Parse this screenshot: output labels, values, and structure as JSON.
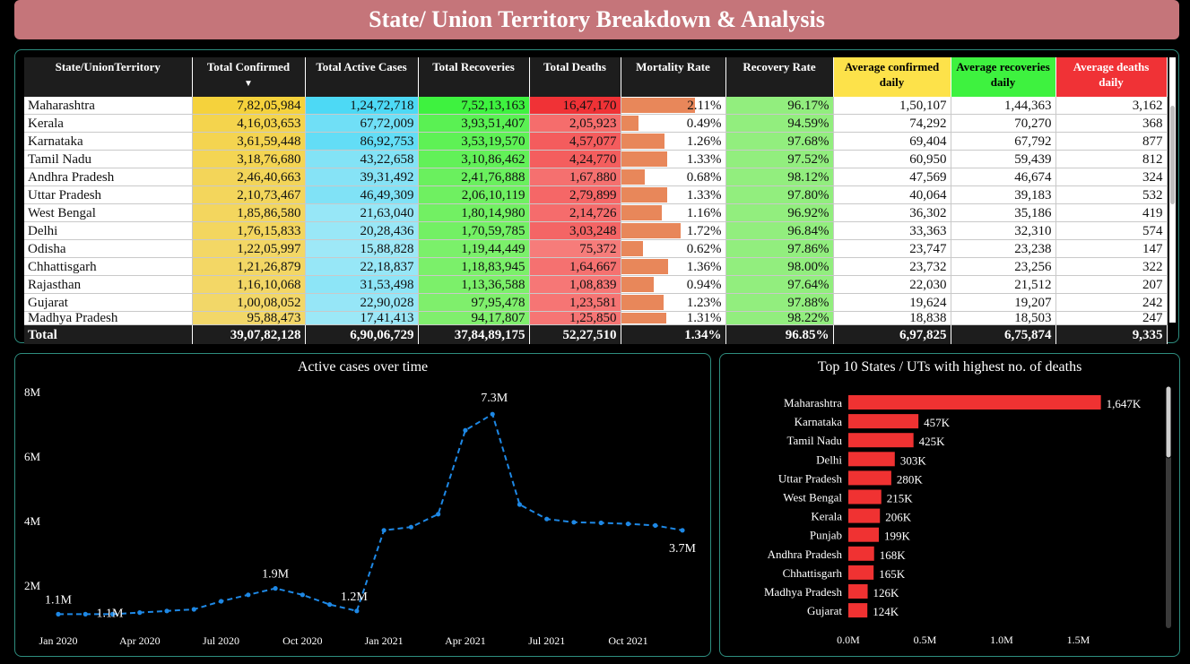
{
  "title": "State/ Union Territory Breakdown & Analysis",
  "table": {
    "headers": [
      "State/UnionTerritory",
      "Total Confirmed",
      "Total Active Cases",
      "Total Recoveries",
      "Total Deaths",
      "Mortality Rate",
      "Recovery Rate",
      "Average confirmed daily",
      "Average recoveries daily",
      "Average deaths daily"
    ],
    "rows": [
      {
        "state": "Maharashtra",
        "confirmed": "7,82,05,984",
        "active": "1,24,72,718",
        "recoveries": "7,52,13,163",
        "deaths": "16,47,170",
        "mortality": "2.11%",
        "mortality_value": 2.11,
        "recovery": "96.17%",
        "avg_confirmed": "1,50,107",
        "avg_recoveries": "1,44,363",
        "avg_deaths": "3,162"
      },
      {
        "state": "Kerala",
        "confirmed": "4,16,03,653",
        "active": "67,72,009",
        "recoveries": "3,93,51,407",
        "deaths": "2,05,923",
        "mortality": "0.49%",
        "mortality_value": 0.49,
        "recovery": "94.59%",
        "avg_confirmed": "74,292",
        "avg_recoveries": "70,270",
        "avg_deaths": "368"
      },
      {
        "state": "Karnataka",
        "confirmed": "3,61,59,448",
        "active": "86,92,753",
        "recoveries": "3,53,19,570",
        "deaths": "4,57,077",
        "mortality": "1.26%",
        "mortality_value": 1.26,
        "recovery": "97.68%",
        "avg_confirmed": "69,404",
        "avg_recoveries": "67,792",
        "avg_deaths": "877"
      },
      {
        "state": "Tamil Nadu",
        "confirmed": "3,18,76,680",
        "active": "43,22,658",
        "recoveries": "3,10,86,462",
        "deaths": "4,24,770",
        "mortality": "1.33%",
        "mortality_value": 1.33,
        "recovery": "97.52%",
        "avg_confirmed": "60,950",
        "avg_recoveries": "59,439",
        "avg_deaths": "812"
      },
      {
        "state": "Andhra Pradesh",
        "confirmed": "2,46,40,663",
        "active": "39,31,492",
        "recoveries": "2,41,76,888",
        "deaths": "1,67,880",
        "mortality": "0.68%",
        "mortality_value": 0.68,
        "recovery": "98.12%",
        "avg_confirmed": "47,569",
        "avg_recoveries": "46,674",
        "avg_deaths": "324"
      },
      {
        "state": "Uttar Pradesh",
        "confirmed": "2,10,73,467",
        "active": "46,49,309",
        "recoveries": "2,06,10,119",
        "deaths": "2,79,899",
        "mortality": "1.33%",
        "mortality_value": 1.33,
        "recovery": "97.80%",
        "avg_confirmed": "40,064",
        "avg_recoveries": "39,183",
        "avg_deaths": "532"
      },
      {
        "state": "West Bengal",
        "confirmed": "1,85,86,580",
        "active": "21,63,040",
        "recoveries": "1,80,14,980",
        "deaths": "2,14,726",
        "mortality": "1.16%",
        "mortality_value": 1.16,
        "recovery": "96.92%",
        "avg_confirmed": "36,302",
        "avg_recoveries": "35,186",
        "avg_deaths": "419"
      },
      {
        "state": "Delhi",
        "confirmed": "1,76,15,833",
        "active": "20,28,436",
        "recoveries": "1,70,59,785",
        "deaths": "3,03,248",
        "mortality": "1.72%",
        "mortality_value": 1.72,
        "recovery": "96.84%",
        "avg_confirmed": "33,363",
        "avg_recoveries": "32,310",
        "avg_deaths": "574"
      },
      {
        "state": "Odisha",
        "confirmed": "1,22,05,997",
        "active": "15,88,828",
        "recoveries": "1,19,44,449",
        "deaths": "75,372",
        "mortality": "0.62%",
        "mortality_value": 0.62,
        "recovery": "97.86%",
        "avg_confirmed": "23,747",
        "avg_recoveries": "23,238",
        "avg_deaths": "147"
      },
      {
        "state": "Chhattisgarh",
        "confirmed": "1,21,26,879",
        "active": "22,18,837",
        "recoveries": "1,18,83,945",
        "deaths": "1,64,667",
        "mortality": "1.36%",
        "mortality_value": 1.36,
        "recovery": "98.00%",
        "avg_confirmed": "23,732",
        "avg_recoveries": "23,256",
        "avg_deaths": "322"
      },
      {
        "state": "Rajasthan",
        "confirmed": "1,16,10,068",
        "active": "31,53,498",
        "recoveries": "1,13,36,588",
        "deaths": "1,08,839",
        "mortality": "0.94%",
        "mortality_value": 0.94,
        "recovery": "97.64%",
        "avg_confirmed": "22,030",
        "avg_recoveries": "21,512",
        "avg_deaths": "207"
      },
      {
        "state": "Gujarat",
        "confirmed": "1,00,08,052",
        "active": "22,90,028",
        "recoveries": "97,95,478",
        "deaths": "1,23,581",
        "mortality": "1.23%",
        "mortality_value": 1.23,
        "recovery": "97.88%",
        "avg_confirmed": "19,624",
        "avg_recoveries": "19,207",
        "avg_deaths": "242"
      },
      {
        "state": "Madhya Pradesh",
        "confirmed": "95,88,473",
        "active": "17,41,413",
        "recoveries": "94,17,807",
        "deaths": "1,25,850",
        "mortality": "1.31%",
        "mortality_value": 1.31,
        "recovery": "98.22%",
        "avg_confirmed": "18,838",
        "avg_recoveries": "18,503",
        "avg_deaths": "247"
      }
    ],
    "total": {
      "label": "Total",
      "confirmed": "39,07,82,128",
      "active": "6,90,06,729",
      "recoveries": "37,84,89,175",
      "deaths": "52,27,510",
      "mortality": "1.34%",
      "recovery": "96.85%",
      "avg_confirmed": "6,97,825",
      "avg_recoveries": "6,75,874",
      "avg_deaths": "9,335"
    }
  },
  "chart_data": [
    {
      "type": "line",
      "title": "Active cases over time",
      "x": [
        "2020-01",
        "2020-02",
        "2020-03",
        "2020-04",
        "2020-05",
        "2020-06",
        "2020-07",
        "2020-08",
        "2020-09",
        "2020-10",
        "2020-11",
        "2020-12",
        "2021-01",
        "2021-02",
        "2021-03",
        "2021-04",
        "2021-05",
        "2021-06",
        "2021-07",
        "2021-08",
        "2021-09",
        "2021-10",
        "2021-11",
        "2021-12"
      ],
      "values": [
        1.1,
        1.1,
        1.1,
        1.15,
        1.2,
        1.25,
        1.5,
        1.7,
        1.9,
        1.7,
        1.4,
        1.2,
        3.7,
        3.8,
        4.2,
        6.8,
        7.3,
        4.5,
        4.05,
        3.95,
        3.93,
        3.9,
        3.85,
        3.7
      ],
      "value_labels": [
        {
          "index": 0,
          "label": "1.1M"
        },
        {
          "index": 2,
          "label": "1.1M"
        },
        {
          "index": 8,
          "label": "1.9M"
        },
        {
          "index": 11,
          "label": "1.2M"
        },
        {
          "index": 16,
          "label": "7.3M"
        },
        {
          "index": 23,
          "label": "3.7M"
        }
      ],
      "x_ticks": [
        "Jan 2020",
        "Apr 2020",
        "Jul 2020",
        "Oct 2020",
        "Jan 2021",
        "Apr 2021",
        "Jul 2021",
        "Oct 2021"
      ],
      "y_ticks": [
        "2M",
        "4M",
        "6M",
        "8M"
      ],
      "ylim": [
        0,
        8
      ],
      "line_color": "#1e88e5",
      "line_style": "dashed"
    },
    {
      "type": "bar",
      "orientation": "horizontal",
      "title": "Top 10 States / UTs with highest no. of deaths",
      "categories": [
        "Maharashtra",
        "Karnataka",
        "Tamil Nadu",
        "Delhi",
        "Uttar Pradesh",
        "West Bengal",
        "Kerala",
        "Punjab",
        "Andhra Pradesh",
        "Chhattisgarh",
        "Madhya Pradesh",
        "Gujarat"
      ],
      "values": [
        1647,
        457,
        425,
        303,
        280,
        215,
        206,
        199,
        168,
        165,
        126,
        124
      ],
      "labels": [
        "1,647K",
        "457K",
        "425K",
        "303K",
        "280K",
        "215K",
        "206K",
        "199K",
        "168K",
        "165K",
        "126K",
        "124K"
      ],
      "x_ticks": [
        "0.0M",
        "0.5M",
        "1.0M",
        "1.5M"
      ],
      "xlim": [
        0,
        1800
      ],
      "bar_color": "#f03232"
    }
  ],
  "colors": {
    "banner": "#c5757a",
    "panel_border": "#2e8d7f",
    "confirmed": "#f5d23c",
    "active": "#4dd9f5",
    "recoveries": "#3ef23f",
    "deaths": "#f03236",
    "mortality_bar": "#e8875a",
    "recovery_rate": "#92ee7e"
  }
}
